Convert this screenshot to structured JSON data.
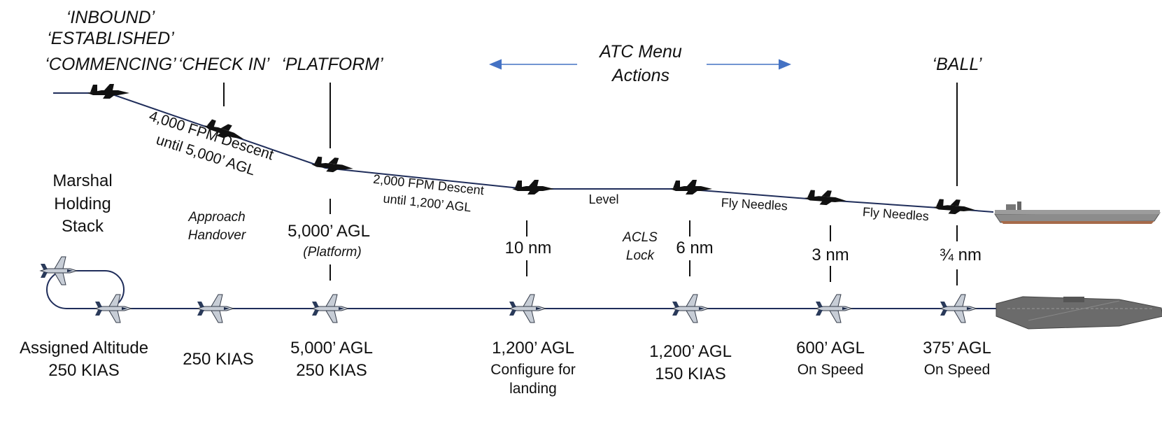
{
  "radio_calls": {
    "inbound": "‘INBOUND’",
    "established": "‘ESTABLISHED’",
    "commencing": "‘COMMENCING’",
    "check_in": "‘CHECK IN’",
    "platform": "‘PLATFORM’",
    "ball": "‘BALL’"
  },
  "atc_menu": {
    "line1": "ATC Menu",
    "line2": "Actions"
  },
  "segments": {
    "descent_4000_line1": "4,000 FPM Descent",
    "descent_4000_line2": "until 5,000’ AGL",
    "descent_2000_line1": "2,000 FPM Descent",
    "descent_2000_line2": "until 1,200’ AGL",
    "level": "Level",
    "fly_needles_1": "Fly Needles",
    "fly_needles_2": "Fly Needles"
  },
  "marshal": {
    "line1": "Marshal",
    "line2": "Holding",
    "line3": "Stack"
  },
  "approach_handover": {
    "line1": "Approach",
    "line2": "Handover"
  },
  "platform_mark": {
    "alt": "5,000’ AGL",
    "sub": "(Platform)"
  },
  "acls": {
    "line1": "ACLS",
    "line2": "Lock"
  },
  "distances": {
    "d10": "10 nm",
    "d6": "6 nm",
    "d3": "3 nm",
    "d34": "¾ nm"
  },
  "bottom_labels": {
    "assigned_line1": "Assigned Altitude",
    "assigned_line2": "250 KIAS",
    "checkin_speed": "250 KIAS",
    "platform_line1": "5,000’ AGL",
    "platform_line2": "250 KIAS",
    "tenmile_line1": "1,200’ AGL",
    "tenmile_line2": "Configure for",
    "tenmile_line3": "landing",
    "sixmile_line1": "1,200’ AGL",
    "sixmile_line2": "150 KIAS",
    "threemile_line1": "600’ AGL",
    "threemile_line2": "On Speed",
    "ball_line1": "375’ AGL",
    "ball_line2": "On Speed"
  },
  "colors": {
    "path": "#1f2d5a",
    "arrow": "#4472c4",
    "ship": "#6b6b6b"
  }
}
